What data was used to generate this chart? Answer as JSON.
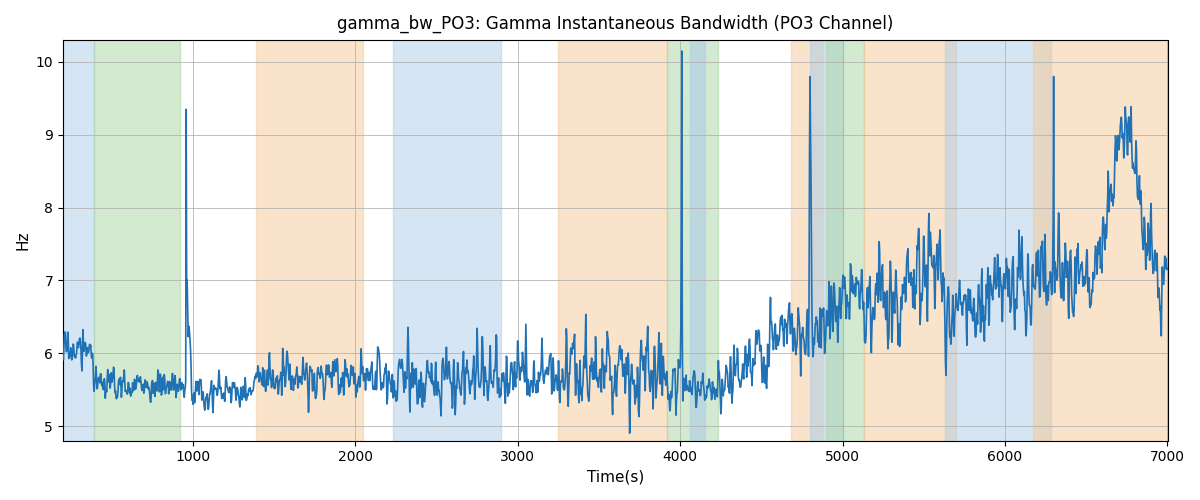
{
  "title": "gamma_bw_PO3: Gamma Instantaneous Bandwidth (PO3 Channel)",
  "xlabel": "Time(s)",
  "ylabel": "Hz",
  "xlim": [
    200,
    7000
  ],
  "ylim": [
    4.8,
    10.3
  ],
  "yticks": [
    5,
    6,
    7,
    8,
    9,
    10
  ],
  "xticks": [
    1000,
    2000,
    3000,
    4000,
    5000,
    6000,
    7000
  ],
  "line_color": "#2171b5",
  "line_width": 1.2,
  "background_color": "#ffffff",
  "grid_color": "#b0b0b0",
  "bands": [
    {
      "xmin": 200,
      "xmax": 390,
      "color": "#aecde8",
      "alpha": 0.5
    },
    {
      "xmin": 390,
      "xmax": 920,
      "color": "#a8d5a2",
      "alpha": 0.5
    },
    {
      "xmin": 1390,
      "xmax": 2050,
      "color": "#f5c897",
      "alpha": 0.5
    },
    {
      "xmin": 2230,
      "xmax": 2900,
      "color": "#aecde8",
      "alpha": 0.5
    },
    {
      "xmin": 3250,
      "xmax": 3920,
      "color": "#f5c897",
      "alpha": 0.5
    },
    {
      "xmin": 3920,
      "xmax": 4230,
      "color": "#a8d5a2",
      "alpha": 0.5
    },
    {
      "xmin": 4060,
      "xmax": 4150,
      "color": "#aecde8",
      "alpha": 0.6
    },
    {
      "xmin": 4680,
      "xmax": 4880,
      "color": "#f5c897",
      "alpha": 0.5
    },
    {
      "xmin": 4800,
      "xmax": 5000,
      "color": "#aecde8",
      "alpha": 0.55
    },
    {
      "xmin": 4900,
      "xmax": 5130,
      "color": "#a8d5a2",
      "alpha": 0.5
    },
    {
      "xmin": 5130,
      "xmax": 5700,
      "color": "#f5c897",
      "alpha": 0.5
    },
    {
      "xmin": 5630,
      "xmax": 6280,
      "color": "#aecde8",
      "alpha": 0.5
    },
    {
      "xmin": 6170,
      "xmax": 7010,
      "color": "#f5c897",
      "alpha": 0.5
    }
  ],
  "seed": 17
}
